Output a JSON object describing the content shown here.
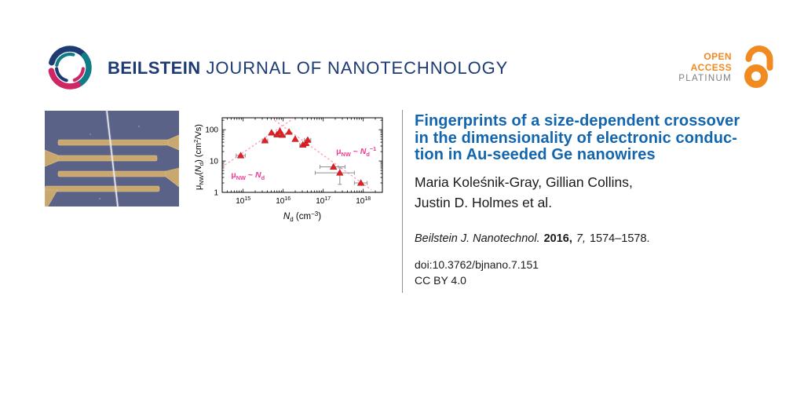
{
  "page": {
    "background": "#ffffff"
  },
  "header": {
    "journal_name_bold": "BEILSTEIN",
    "journal_name_rest": " JOURNAL OF NANOTECHNOLOGY",
    "brand_navy": "#1d3a73",
    "logo_teal": "#0f7c86",
    "logo_crimson": "#cf2665"
  },
  "open_access": {
    "line1": "OPEN",
    "line2": "ACCESS",
    "line3": "PLATINUM",
    "orange": "#f18a21",
    "platinum_gray": "#7c7e80"
  },
  "article": {
    "title_color": "#1366ae",
    "title_lines": [
      "Fingerprints of a size-dependent crossover",
      "in the dimensionality of electronic conduc-",
      "tion in Au-seeded Ge nanowires"
    ],
    "author_lines": [
      "Maria Koleśnik-Gray, Gillian Collins,",
      "Justin D. Holmes et al."
    ],
    "citation": {
      "journal": "Beilstein J. Nanotechnol.",
      "year": "2016,",
      "volume": "7,",
      "pages": "1574–1578."
    },
    "doi": "doi:10.3762/bjnano.7.151",
    "license": "CC BY 4.0"
  },
  "sem": {
    "background": "#5b6287",
    "electrode": "#c9a870",
    "electrode_edge": "#dcc186",
    "nanowire": "#e6e9f2"
  },
  "chart_data": {
    "type": "scatter",
    "title": "",
    "x_scale": "log",
    "y_scale": "log",
    "xlabel": "*N*_{d} (cm^{−3})",
    "ylabel": "μ_{NW}(*N*_{d}) (cm^{2}/Vs)",
    "xlim": [
      300000000000000.0,
      3e+18
    ],
    "ylim": [
      1,
      240
    ],
    "xticks": [
      1000000000000000.0,
      1e+16,
      1e+17,
      1e+18
    ],
    "yticks": [
      1,
      10,
      100
    ],
    "grid": false,
    "points": [
      {
        "x": 870000000000000.0,
        "y": 15,
        "xerr": [
          670000000000000.0,
          1130000000000000.0
        ]
      },
      {
        "x": 3500000000000000.0,
        "y": 45,
        "xerr": [
          3000000000000000.0,
          4100000000000000.0
        ]
      },
      {
        "x": 5100000000000000.0,
        "y": 80
      },
      {
        "x": 7000000000000000.0,
        "y": 70,
        "xerr": [
          5900000000000000.0,
          8300000000000000.0
        ]
      },
      {
        "x": 8300000000000000.0,
        "y": 90
      },
      {
        "x": 9500000000000000.0,
        "y": 68,
        "xerr": [
          8000000000000000.0,
          1.13e+16
        ]
      },
      {
        "x": 1.4e+16,
        "y": 85
      },
      {
        "x": 2e+16,
        "y": 50
      },
      {
        "x": 3.1e+16,
        "y": 33,
        "xerr": [
          2.6e+16,
          3.7e+16
        ]
      },
      {
        "x": 3.7e+16,
        "y": 37
      },
      {
        "x": 4.1e+16,
        "y": 47,
        "xerr": [
          3.4e+16,
          4.9e+16
        ]
      },
      {
        "x": 1.8e+17,
        "y": 6.5,
        "xerr": [
          8.3e+16,
          3.5e+17
        ]
      },
      {
        "x": 2.6e+17,
        "y": 4.2,
        "xerr": [
          6.3e+16,
          6e+17
        ],
        "yerr": [
          1.8,
          6.0
        ]
      },
      {
        "x": 8.7e+17,
        "y": 2.0,
        "xerr": [
          6e+17,
          1.25e+18
        ]
      }
    ],
    "trend_lines": [
      {
        "label": "μ_{NW} ~ *N*_{d}",
        "from": [
          350000000000000.0,
          7.5
        ],
        "to": [
          1.65e+16,
          211
        ],
        "label_at": [
          500000000000000.0,
          3.0
        ]
      },
      {
        "label": "μ_{NW} ~ *N*_{d}^{−1}",
        "from": [
          6100000000000000.0,
          200
        ],
        "to": [
          1.6e+18,
          1.2
        ],
        "label_at": [
          2.1e+17,
          17
        ]
      }
    ],
    "legend": null,
    "colors": {
      "marker": "#e41f25",
      "marker_edge": "#a81014",
      "trend": "#ff9fc2",
      "trend_label": "#f23b92",
      "error_bar": "#909090",
      "axis": "#000000"
    }
  }
}
